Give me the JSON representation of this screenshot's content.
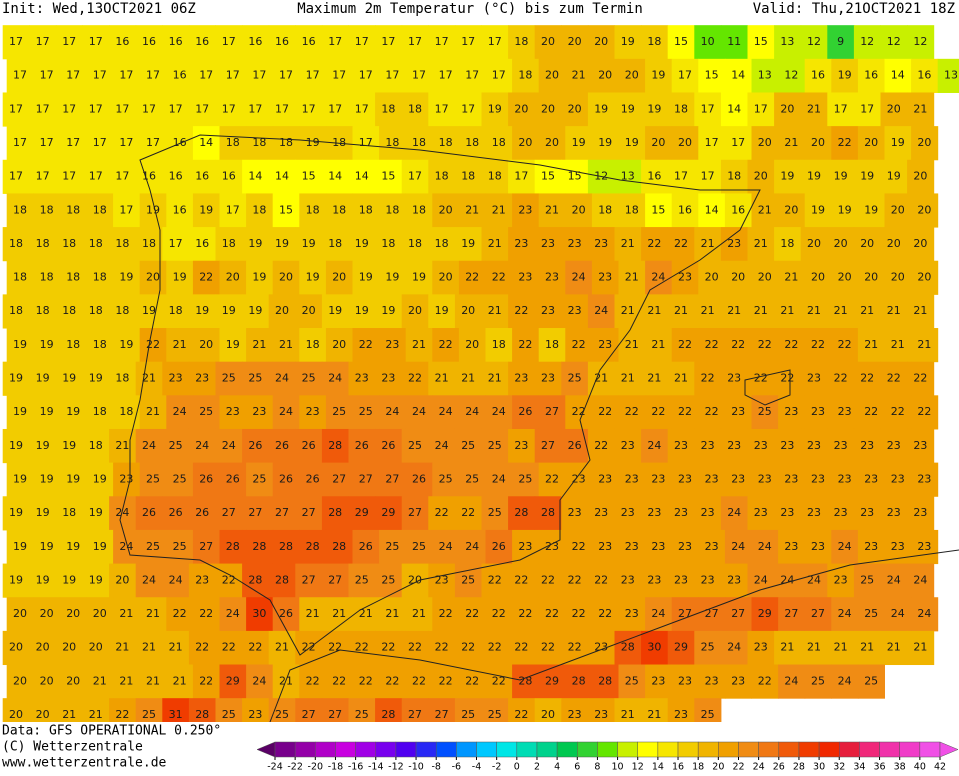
{
  "header": {
    "init": "Init: Wed,13OCT2021 06Z",
    "title": "Maximum 2m Temperatur (°C) bis zum Termin",
    "valid": "Valid: Thu,21OCT2021 18Z"
  },
  "footer": {
    "source": "Data: GFS OPERATIONAL 0.250°",
    "copyright": "(C) Wetterzentrale",
    "url": "www.wetterzentrale.de"
  },
  "map": {
    "grid": [
      [
        17,
        17,
        17,
        17,
        16,
        16,
        16,
        16,
        17,
        16,
        16,
        16,
        17,
        17,
        17,
        17,
        17,
        17,
        17,
        18,
        20,
        20,
        20,
        19,
        18,
        15,
        10,
        11,
        15,
        13,
        12,
        9,
        12,
        12,
        12
      ],
      [
        17,
        17,
        17,
        17,
        17,
        17,
        16,
        17,
        17,
        17,
        17,
        17,
        17,
        17,
        17,
        17,
        17,
        17,
        17,
        18,
        20,
        21,
        20,
        20,
        19,
        17,
        15,
        14,
        13,
        12,
        16,
        19,
        16,
        14,
        16,
        13
      ],
      [
        17,
        17,
        17,
        17,
        17,
        17,
        17,
        17,
        17,
        17,
        17,
        17,
        17,
        17,
        18,
        18,
        17,
        17,
        19,
        20,
        20,
        20,
        19,
        19,
        19,
        18,
        17,
        14,
        17,
        20,
        21,
        17,
        17,
        20,
        21
      ],
      [
        17,
        17,
        17,
        17,
        17,
        17,
        16,
        14,
        18,
        18,
        18,
        19,
        18,
        17,
        18,
        18,
        18,
        18,
        18,
        20,
        20,
        19,
        19,
        19,
        20,
        20,
        17,
        17,
        20,
        21,
        20,
        22,
        20,
        19,
        20
      ],
      [
        17,
        17,
        17,
        17,
        17,
        16,
        16,
        16,
        16,
        14,
        14,
        15,
        14,
        14,
        15,
        17,
        18,
        18,
        18,
        17,
        15,
        15,
        12,
        13,
        16,
        17,
        17,
        18,
        20,
        19,
        19,
        19,
        19,
        19,
        20
      ],
      [
        18,
        18,
        18,
        18,
        17,
        19,
        16,
        19,
        17,
        18,
        15,
        18,
        18,
        18,
        18,
        18,
        20,
        21,
        21,
        23,
        21,
        20,
        18,
        18,
        15,
        16,
        14,
        16,
        21,
        20,
        19,
        19,
        19,
        20,
        20
      ],
      [
        18,
        18,
        18,
        18,
        18,
        18,
        17,
        16,
        18,
        19,
        19,
        19,
        18,
        19,
        18,
        18,
        18,
        19,
        21,
        23,
        23,
        23,
        23,
        21,
        22,
        22,
        21,
        23,
        21,
        18,
        20,
        20,
        20,
        20,
        20
      ],
      [
        18,
        18,
        18,
        18,
        19,
        20,
        19,
        22,
        20,
        19,
        20,
        19,
        20,
        19,
        19,
        19,
        20,
        22,
        22,
        23,
        23,
        24,
        23,
        21,
        24,
        23,
        20,
        20,
        20,
        21,
        20,
        20,
        20,
        20,
        20
      ],
      [
        18,
        18,
        18,
        18,
        18,
        19,
        18,
        19,
        19,
        19,
        20,
        20,
        19,
        19,
        19,
        20,
        19,
        20,
        21,
        22,
        23,
        23,
        24,
        21,
        21,
        21,
        21,
        21,
        21,
        21,
        21,
        21,
        21,
        21,
        21
      ],
      [
        19,
        19,
        18,
        18,
        19,
        22,
        21,
        20,
        19,
        21,
        21,
        18,
        20,
        22,
        23,
        21,
        22,
        20,
        18,
        22,
        18,
        22,
        23,
        21,
        21,
        22,
        22,
        22,
        22,
        22,
        22,
        22,
        21,
        21,
        21
      ],
      [
        19,
        19,
        19,
        19,
        18,
        21,
        23,
        23,
        25,
        25,
        24,
        25,
        24,
        23,
        23,
        22,
        21,
        21,
        21,
        23,
        23,
        25,
        21,
        21,
        21,
        21,
        22,
        23,
        22,
        22,
        23,
        22,
        22,
        22,
        22
      ],
      [
        19,
        19,
        19,
        18,
        18,
        21,
        24,
        25,
        23,
        23,
        24,
        23,
        25,
        25,
        24,
        24,
        24,
        24,
        24,
        26,
        27,
        22,
        22,
        22,
        22,
        22,
        22,
        23,
        25,
        23,
        23,
        23,
        22,
        22,
        22
      ],
      [
        19,
        19,
        19,
        18,
        21,
        24,
        25,
        24,
        24,
        26,
        26,
        26,
        28,
        26,
        26,
        25,
        24,
        25,
        25,
        23,
        27,
        26,
        22,
        23,
        24,
        23,
        23,
        23,
        23,
        23,
        23,
        23,
        23,
        23,
        23
      ],
      [
        19,
        19,
        19,
        19,
        23,
        25,
        25,
        26,
        26,
        25,
        26,
        26,
        27,
        27,
        27,
        26,
        25,
        25,
        24,
        25,
        22,
        23,
        23,
        23,
        23,
        23,
        23,
        23,
        23,
        23,
        23,
        23,
        23,
        23,
        23
      ],
      [
        19,
        19,
        18,
        19,
        24,
        26,
        26,
        26,
        27,
        27,
        27,
        27,
        28,
        29,
        29,
        27,
        22,
        22,
        25,
        28,
        28,
        23,
        23,
        23,
        23,
        23,
        23,
        24,
        23,
        23,
        23,
        23,
        23,
        23,
        23
      ],
      [
        19,
        19,
        19,
        19,
        24,
        25,
        25,
        27,
        28,
        28,
        28,
        28,
        28,
        26,
        25,
        25,
        24,
        24,
        26,
        23,
        23,
        22,
        23,
        23,
        23,
        23,
        23,
        24,
        24,
        23,
        23,
        24,
        23,
        23,
        23
      ],
      [
        19,
        19,
        19,
        19,
        20,
        24,
        24,
        23,
        22,
        28,
        28,
        27,
        27,
        25,
        25,
        20,
        23,
        25,
        22,
        22,
        22,
        22,
        22,
        23,
        23,
        23,
        23,
        23,
        24,
        24,
        24,
        23,
        25,
        24,
        24
      ],
      [
        20,
        20,
        20,
        20,
        21,
        21,
        22,
        22,
        24,
        30,
        26,
        21,
        21,
        21,
        21,
        21,
        22,
        22,
        22,
        22,
        22,
        22,
        22,
        23,
        24,
        27,
        27,
        27,
        29,
        27,
        27,
        24,
        25,
        24,
        24
      ],
      [
        20,
        20,
        20,
        20,
        21,
        21,
        21,
        22,
        22,
        22,
        21,
        22,
        22,
        22,
        22,
        22,
        22,
        22,
        22,
        22,
        22,
        22,
        23,
        28,
        30,
        29,
        25,
        24,
        23,
        21,
        21,
        21,
        21,
        21,
        21
      ],
      [
        20,
        20,
        20,
        21,
        21,
        21,
        21,
        22,
        29,
        24,
        21,
        22,
        22,
        22,
        22,
        22,
        22,
        22,
        22,
        28,
        29,
        28,
        28,
        25,
        23,
        23,
        23,
        23,
        22,
        24,
        25,
        24,
        25
      ],
      [
        20,
        20,
        21,
        21,
        22,
        25,
        31,
        28,
        25,
        23,
        25,
        27,
        27,
        25,
        28,
        27,
        27,
        25,
        25,
        22,
        20,
        23,
        23,
        21,
        21,
        23,
        25
      ]
    ]
  },
  "colorbar": {
    "ticks": [
      -24,
      -22,
      -20,
      -18,
      -16,
      -14,
      -12,
      -10,
      -8,
      -6,
      -4,
      -2,
      0,
      2,
      4,
      6,
      8,
      10,
      12,
      14,
      16,
      18,
      20,
      22,
      24,
      26,
      28,
      30,
      32,
      34,
      36,
      38,
      40,
      42
    ],
    "colors": [
      "#5a0066",
      "#78008c",
      "#9400a8",
      "#b000c8",
      "#c800e0",
      "#a000e6",
      "#7800ee",
      "#5000f0",
      "#2828f5",
      "#0050ff",
      "#0096ff",
      "#00c8ff",
      "#00e6e6",
      "#00dcb4",
      "#00d28c",
      "#00c850",
      "#32d232",
      "#64e600",
      "#c8f000",
      "#ffff00",
      "#f6e600",
      "#f2cc00",
      "#f0b400",
      "#f0a000",
      "#f08c14",
      "#f07814",
      "#f05a0a",
      "#f03c00",
      "#f02800",
      "#e61e3c",
      "#f0287a",
      "#f032aa",
      "#f03cc8",
      "#f050e6"
    ]
  }
}
